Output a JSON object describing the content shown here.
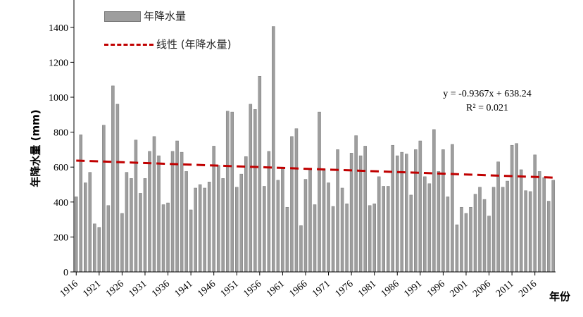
{
  "chart_data": {
    "type": "bar",
    "title": "",
    "xlabel": "年份",
    "ylabel": "年降水量 (mm)",
    "ylim": [
      0,
      1500
    ],
    "yticks": [
      0,
      200,
      400,
      600,
      800,
      1000,
      1200,
      1400
    ],
    "xtick_labels": [
      "1916",
      "1921",
      "1926",
      "1931",
      "1936",
      "1941",
      "1946",
      "1951",
      "1956",
      "1961",
      "1966",
      "1971",
      "1976",
      "1981",
      "1986",
      "1991",
      "1996",
      "2001",
      "2006",
      "2011",
      "2016"
    ],
    "years": [
      1916,
      1917,
      1918,
      1919,
      1920,
      1921,
      1922,
      1923,
      1924,
      1925,
      1926,
      1927,
      1928,
      1929,
      1930,
      1931,
      1932,
      1933,
      1934,
      1935,
      1936,
      1937,
      1938,
      1939,
      1940,
      1941,
      1942,
      1943,
      1944,
      1945,
      1946,
      1947,
      1948,
      1949,
      1950,
      1951,
      1952,
      1953,
      1954,
      1955,
      1956,
      1957,
      1958,
      1959,
      1960,
      1961,
      1962,
      1963,
      1964,
      1965,
      1966,
      1967,
      1968,
      1969,
      1970,
      1971,
      1972,
      1973,
      1974,
      1975,
      1976,
      1977,
      1978,
      1979,
      1980,
      1981,
      1982,
      1983,
      1984,
      1985,
      1986,
      1987,
      1988,
      1989,
      1990,
      1991,
      1992,
      1993,
      1994,
      1995,
      1996,
      1997,
      1998,
      1999,
      2000,
      2001,
      2002,
      2003,
      2004,
      2005,
      2006,
      2007,
      2008,
      2009,
      2010,
      2011,
      2012,
      2013,
      2014,
      2015,
      2016,
      2017,
      2018,
      2019,
      2020
    ],
    "series": [
      {
        "name": "年降水量",
        "color": "#9e9e9e",
        "values": [
          430,
          785,
          510,
          570,
          275,
          255,
          840,
          380,
          1065,
          960,
          335,
          570,
          535,
          755,
          450,
          535,
          690,
          775,
          665,
          385,
          395,
          690,
          750,
          685,
          575,
          355,
          480,
          500,
          480,
          515,
          720,
          610,
          535,
          920,
          915,
          485,
          560,
          660,
          960,
          930,
          1120,
          490,
          690,
          1405,
          525,
          600,
          370,
          775,
          820,
          265,
          530,
          585,
          385,
          915,
          590,
          510,
          375,
          700,
          480,
          390,
          680,
          780,
          665,
          720,
          380,
          390,
          545,
          490,
          490,
          725,
          665,
          685,
          675,
          440,
          700,
          750,
          545,
          505,
          815,
          575,
          700,
          430,
          730,
          270,
          370,
          335,
          370,
          445,
          485,
          415,
          320,
          485,
          630,
          485,
          520,
          725,
          735,
          585,
          465,
          460,
          670,
          575,
          540,
          405,
          525
        ]
      }
    ],
    "trendline": {
      "name": "线性 (年降水量)",
      "color": "#c00000",
      "style": "dashed",
      "slope": -0.9367,
      "intercept": 638.24,
      "equation_text": "y = -0.9367x + 638.24",
      "r2_text": "R² = 0.021"
    },
    "legend_position": "top-left",
    "grid": false
  }
}
